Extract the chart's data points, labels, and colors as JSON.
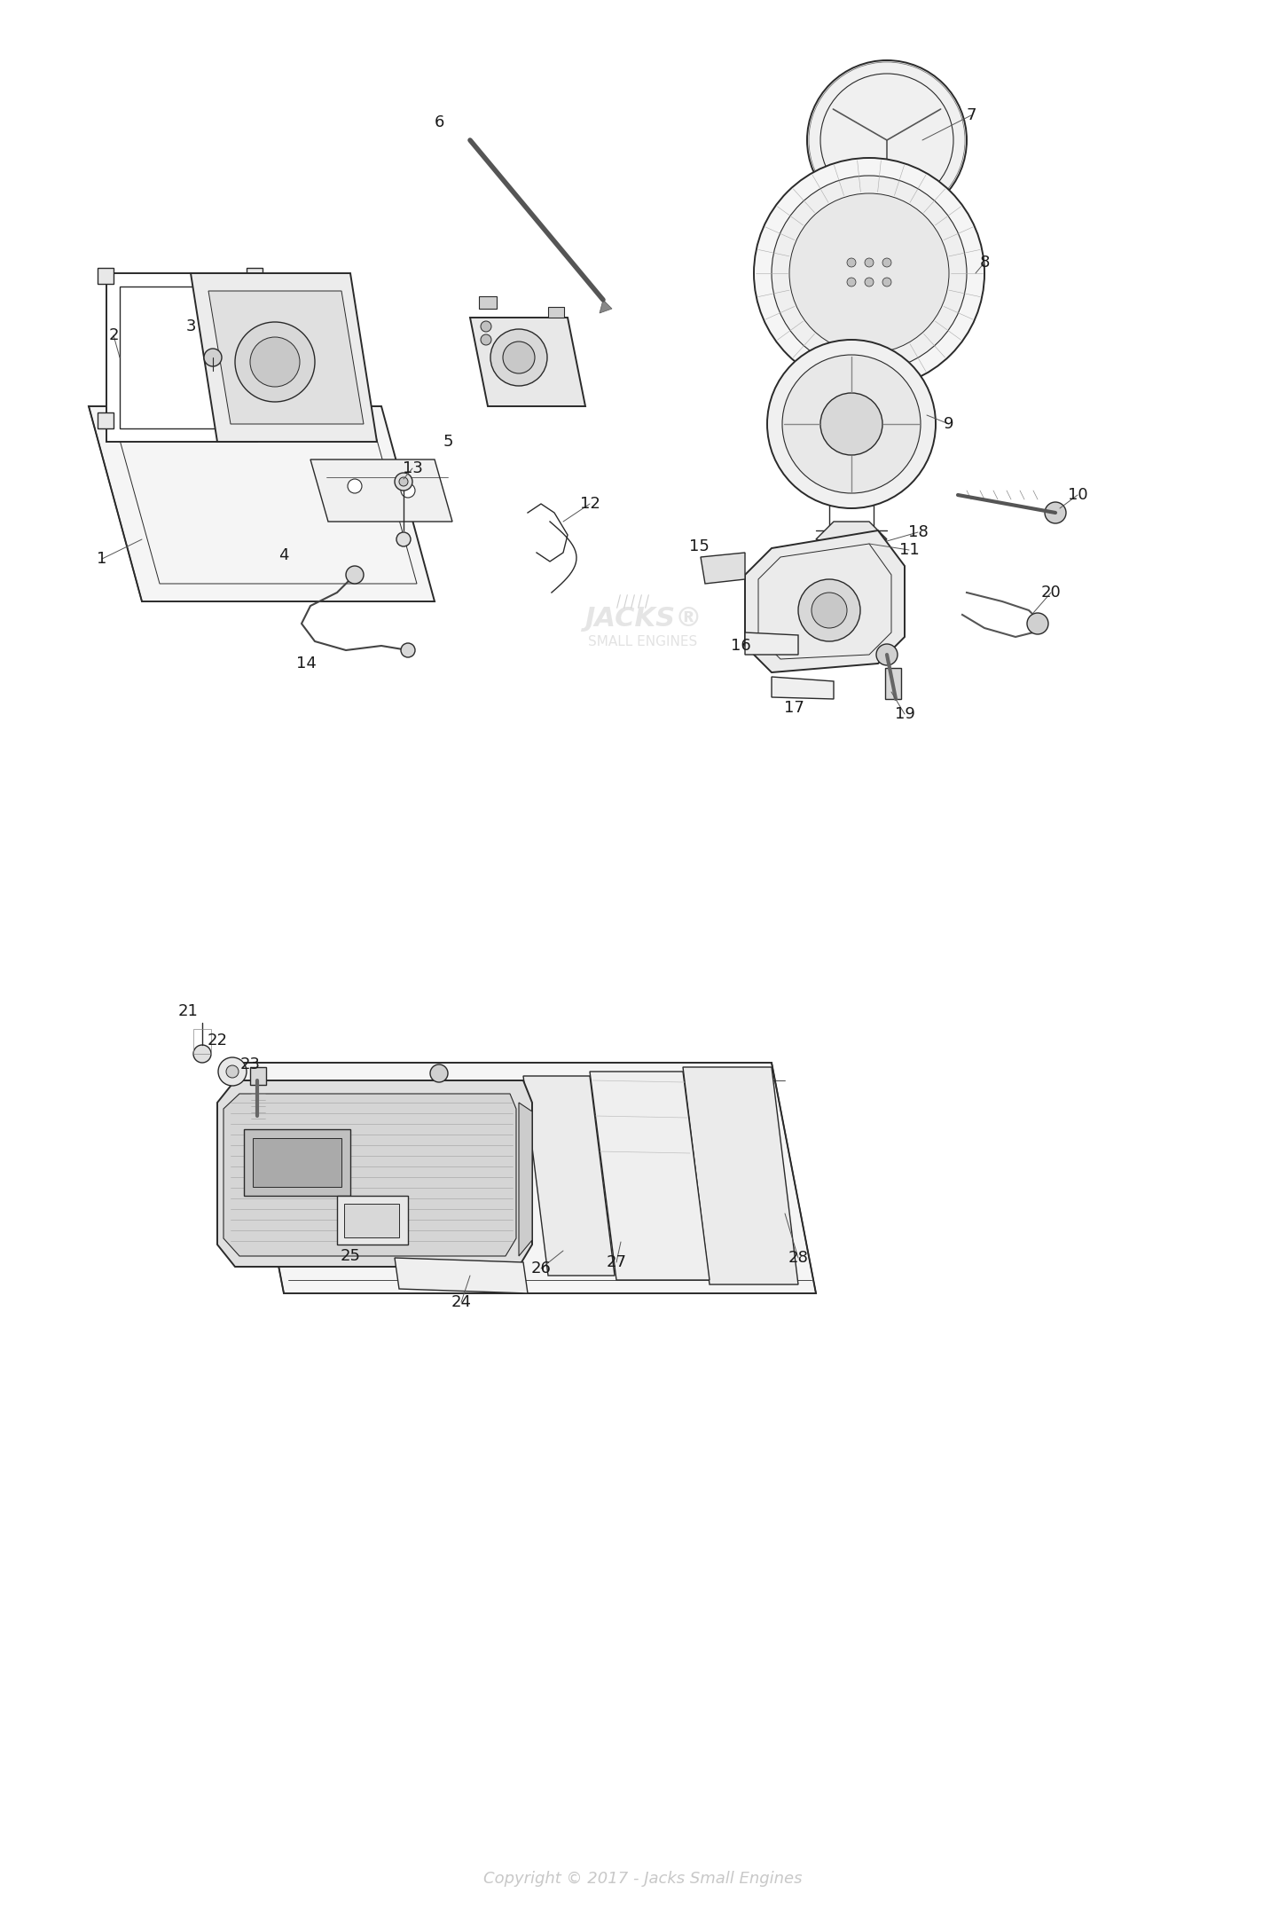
{
  "copyright": "Copyright © 2017 - Jacks Small Engines",
  "copyright_color": "#c8c8c8",
  "background_color": "#ffffff",
  "line_color": "#2a2a2a",
  "label_color": "#1a1a1a",
  "fig_width": 14.5,
  "fig_height": 21.78,
  "dpi": 100
}
